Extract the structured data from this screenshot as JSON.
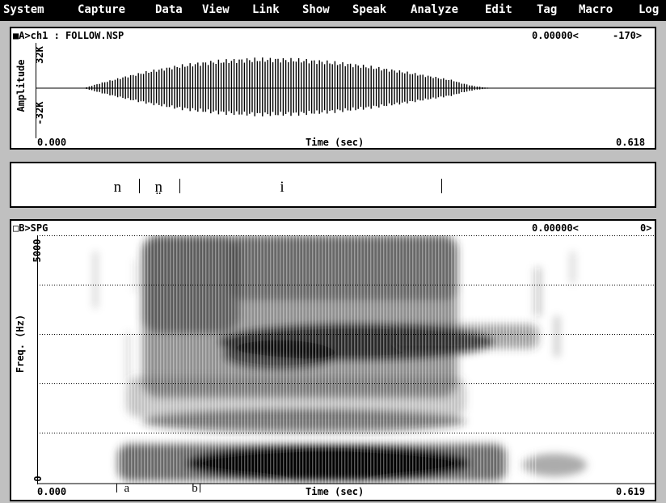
{
  "menu": [
    "System",
    "Capture",
    "Data",
    "View",
    "Link",
    "Show",
    "Speak",
    "Analyze",
    "Edit",
    "Tag",
    "Macro",
    "Log"
  ],
  "wave": {
    "title": "■A>ch1 : FOLLOW.NSP",
    "cursor": "0.00000<",
    "cursor_value": "-170>",
    "ylabel": "Amplitude",
    "ymax": "32K",
    "ymin": "-32K",
    "xlabel": "Time (sec)",
    "xstart": "0.000",
    "xend": "0.618"
  },
  "transcription": {
    "segments": [
      {
        "label": "n",
        "time": 0.082
      },
      {
        "label": "n̤",
        "time": 0.123
      },
      {
        "label": "i",
        "time": 0.248
      }
    ],
    "boundaries": [
      0.103,
      0.144,
      0.405
    ]
  },
  "spectrogram": {
    "title": "□B>SPG",
    "cursor": "0.00000<",
    "cursor_value": "0>",
    "ylabel": "Freq. (Hz)",
    "ymax": "5000",
    "ymin": "0",
    "xlabel": "Time (sec)",
    "xstart": "0.000",
    "xend": "0.619",
    "markers": [
      {
        "label": "a",
        "time": 0.079
      },
      {
        "label": "b",
        "time": 0.155
      }
    ]
  }
}
